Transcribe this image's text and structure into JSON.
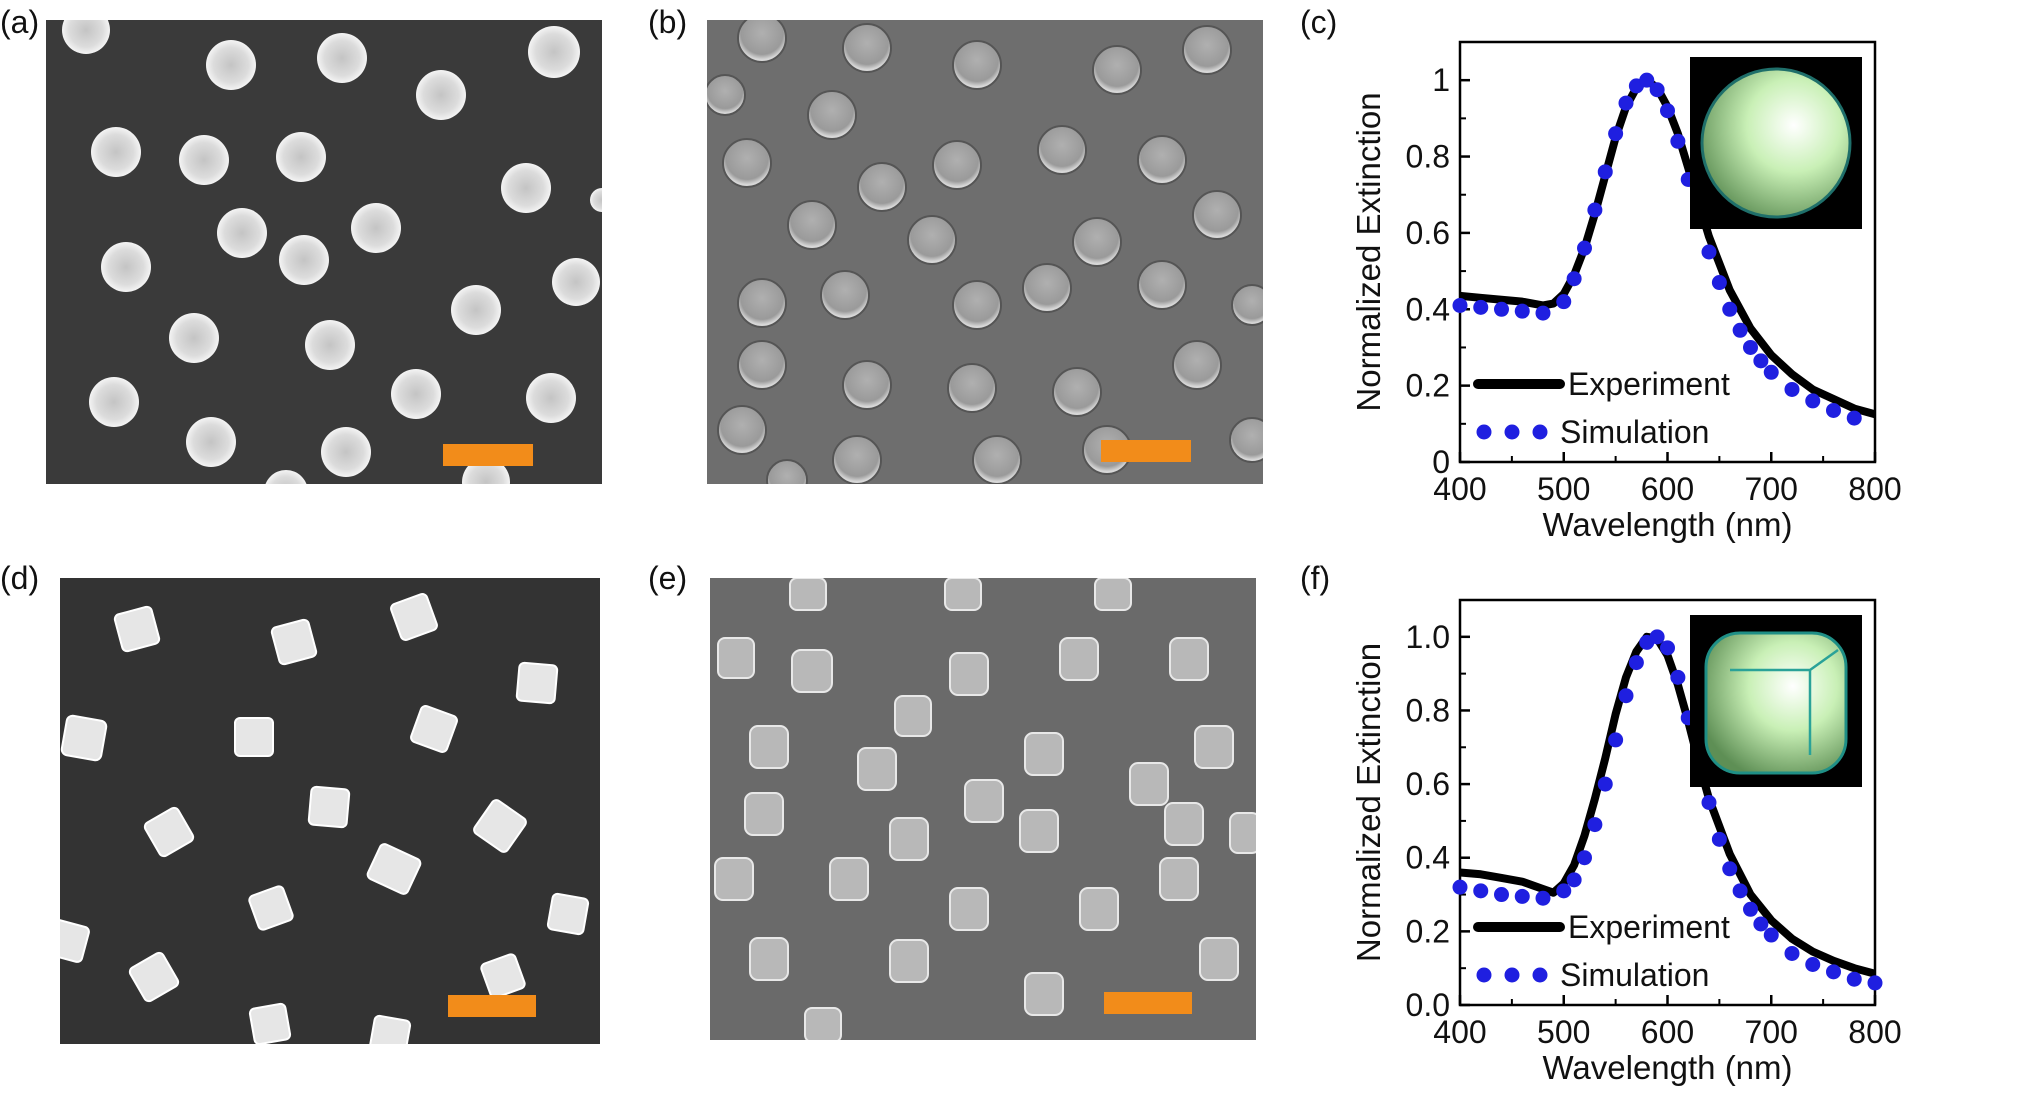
{
  "panels": {
    "a": {
      "label": "(a)"
    },
    "b": {
      "label": "(b)"
    },
    "c": {
      "label": "(c)"
    },
    "d": {
      "label": "(d)"
    },
    "e": {
      "label": "(e)"
    },
    "f": {
      "label": "(f)"
    }
  },
  "colors": {
    "experiment": "#000000",
    "simulation": "#1f1fe0",
    "scale_bar": "#f28c1a",
    "sem_bg": "#3a3a3a",
    "sem_particle": "#e8e8e8"
  },
  "chart_data": [
    {
      "type": "line",
      "panel": "c",
      "xlabel": "Wavelength (nm)",
      "ylabel": "Normalized Extinction",
      "xlim": [
        400,
        800
      ],
      "ylim": [
        0,
        1.1
      ],
      "xticks": [
        400,
        500,
        600,
        700,
        800
      ],
      "yticks": [
        0,
        0.2,
        0.4,
        0.6,
        0.8,
        1
      ],
      "ytick_labels": [
        "0",
        "0.2",
        "0.4",
        "0.6",
        "0.8",
        "1"
      ],
      "legend": [
        "Experiment",
        "Simulation"
      ],
      "legend_position": "bottom-left",
      "inset_icon": "sphere-icon",
      "series": [
        {
          "name": "Experiment",
          "style": "solid",
          "x": [
            400,
            420,
            440,
            460,
            480,
            490,
            500,
            510,
            520,
            530,
            540,
            550,
            560,
            570,
            580,
            590,
            600,
            610,
            620,
            630,
            640,
            660,
            680,
            700,
            720,
            740,
            760,
            780,
            800
          ],
          "y": [
            0.435,
            0.43,
            0.425,
            0.42,
            0.41,
            0.415,
            0.44,
            0.49,
            0.56,
            0.65,
            0.75,
            0.85,
            0.93,
            0.98,
            1.0,
            0.98,
            0.93,
            0.86,
            0.77,
            0.68,
            0.59,
            0.45,
            0.35,
            0.28,
            0.23,
            0.19,
            0.165,
            0.14,
            0.125
          ]
        },
        {
          "name": "Simulation",
          "style": "dotted",
          "x": [
            400,
            420,
            440,
            460,
            480,
            500,
            510,
            520,
            530,
            540,
            550,
            560,
            570,
            580,
            590,
            600,
            610,
            620,
            630,
            640,
            650,
            660,
            670,
            680,
            690,
            700,
            720,
            740,
            760,
            780
          ],
          "y": [
            0.41,
            0.405,
            0.4,
            0.395,
            0.39,
            0.42,
            0.48,
            0.56,
            0.66,
            0.76,
            0.86,
            0.94,
            0.985,
            1.0,
            0.975,
            0.92,
            0.84,
            0.74,
            0.64,
            0.55,
            0.47,
            0.4,
            0.345,
            0.3,
            0.265,
            0.235,
            0.19,
            0.16,
            0.135,
            0.115
          ]
        }
      ]
    },
    {
      "type": "line",
      "panel": "f",
      "xlabel": "Wavelength (nm)",
      "ylabel": "Normalized Extinction",
      "xlim": [
        400,
        800
      ],
      "ylim": [
        0,
        1.1
      ],
      "xticks": [
        400,
        500,
        600,
        700,
        800
      ],
      "yticks": [
        0,
        0.2,
        0.4,
        0.6,
        0.8,
        1.0
      ],
      "ytick_labels": [
        "0.0",
        "0.2",
        "0.4",
        "0.6",
        "0.8",
        "1.0"
      ],
      "legend": [
        "Experiment",
        "Simulation"
      ],
      "legend_position": "bottom-left",
      "inset_icon": "rounded-cube-icon",
      "series": [
        {
          "name": "Experiment",
          "style": "solid",
          "x": [
            400,
            420,
            440,
            460,
            480,
            490,
            500,
            510,
            520,
            530,
            540,
            550,
            560,
            570,
            580,
            590,
            600,
            610,
            620,
            630,
            640,
            660,
            680,
            700,
            720,
            740,
            760,
            780,
            800
          ],
          "y": [
            0.36,
            0.355,
            0.345,
            0.335,
            0.315,
            0.305,
            0.33,
            0.38,
            0.46,
            0.56,
            0.67,
            0.79,
            0.89,
            0.96,
            1.0,
            0.995,
            0.95,
            0.87,
            0.77,
            0.66,
            0.56,
            0.41,
            0.3,
            0.23,
            0.18,
            0.145,
            0.12,
            0.1,
            0.085
          ]
        },
        {
          "name": "Simulation",
          "style": "dotted",
          "x": [
            400,
            420,
            440,
            460,
            480,
            500,
            510,
            520,
            530,
            540,
            550,
            560,
            570,
            580,
            590,
            600,
            610,
            620,
            630,
            640,
            650,
            660,
            670,
            680,
            690,
            700,
            720,
            740,
            760,
            780,
            800
          ],
          "y": [
            0.32,
            0.31,
            0.3,
            0.295,
            0.29,
            0.31,
            0.34,
            0.4,
            0.49,
            0.6,
            0.72,
            0.84,
            0.93,
            0.985,
            1.0,
            0.97,
            0.89,
            0.78,
            0.66,
            0.55,
            0.45,
            0.37,
            0.31,
            0.26,
            0.22,
            0.19,
            0.14,
            0.11,
            0.09,
            0.07,
            0.06
          ]
        }
      ]
    }
  ]
}
